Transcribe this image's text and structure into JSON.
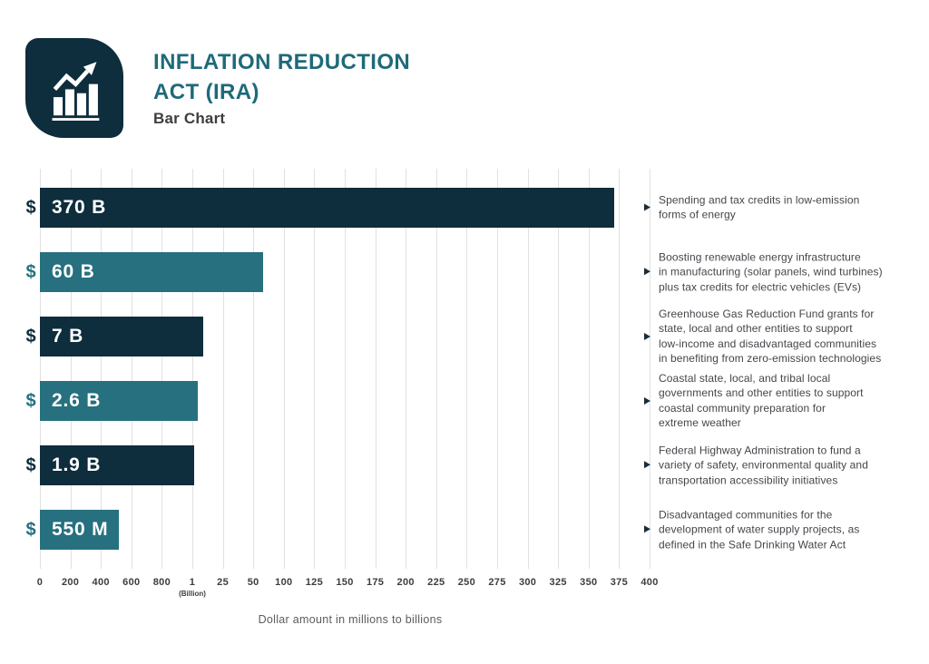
{
  "header": {
    "title": "INFLATION REDUCTION\nACT (IRA)",
    "subtitle": "Bar Chart",
    "logo_icon": "bar-chart-trend-icon"
  },
  "colors": {
    "navy": "#0e2d3d",
    "teal": "#26707f",
    "title_teal": "#1e6a79",
    "grid": "#e1e1e1",
    "bullet": "#1b2d38"
  },
  "chart_data": {
    "type": "bar",
    "orientation": "horizontal",
    "title": "Inflation Reduction Act (IRA)",
    "xlabel": "Dollar amount in millions to billions",
    "grid": "vertical",
    "legend": null,
    "axis_note": "x axis is segmented: millions (0-800) then billions (1-400)",
    "x_ticks": [
      "0",
      "200",
      "400",
      "600",
      "800",
      "1",
      "25",
      "50",
      "100",
      "125",
      "150",
      "175",
      "200",
      "225",
      "250",
      "275",
      "300",
      "325",
      "350",
      "375",
      "400"
    ],
    "billion_tick_index": 5,
    "billion_tick_sublabel": "(Billion)",
    "currency_prefix": "$",
    "bars": [
      {
        "label": "370 B",
        "value_usd_billions": 370,
        "color": "navy",
        "length_pct": 94.2,
        "description_lines": [
          "Spending and tax credits in low-emission",
          "forms of energy"
        ]
      },
      {
        "label": "60 B",
        "value_usd_billions": 60,
        "color": "teal",
        "length_pct": 36.6,
        "description_lines": [
          "Boosting renewable energy infrastructure",
          "in manufacturing (solar panels, wind turbines)",
          "plus tax credits for electric vehicles (EVs)"
        ]
      },
      {
        "label": "7 B",
        "value_usd_billions": 7,
        "color": "navy",
        "length_pct": 26.8,
        "description_lines": [
          "Greenhouse Gas Reduction Fund grants for",
          "state, local and other entities to support",
          "low-income and disadvantaged communities",
          "in benefiting from zero-emission technologies"
        ]
      },
      {
        "label": "2.6 B",
        "value_usd_billions": 2.6,
        "color": "teal",
        "length_pct": 25.9,
        "description_lines": [
          "Coastal state, local, and tribal local",
          "governments and other entities to support",
          "coastal community preparation for",
          "extreme weather"
        ]
      },
      {
        "label": "1.9 B",
        "value_usd_billions": 1.9,
        "color": "navy",
        "length_pct": 25.3,
        "description_lines": [
          "Federal Highway Administration to fund a",
          "variety of safety, environmental quality and",
          "transportation accessibility initiatives"
        ]
      },
      {
        "label": "550 M",
        "value_usd_billions": 0.55,
        "color": "teal",
        "length_pct": 12.9,
        "description_lines": [
          "Disadvantaged communities for the",
          "development of water supply projects, as",
          "defined in the Safe Drinking Water Act"
        ]
      }
    ]
  }
}
